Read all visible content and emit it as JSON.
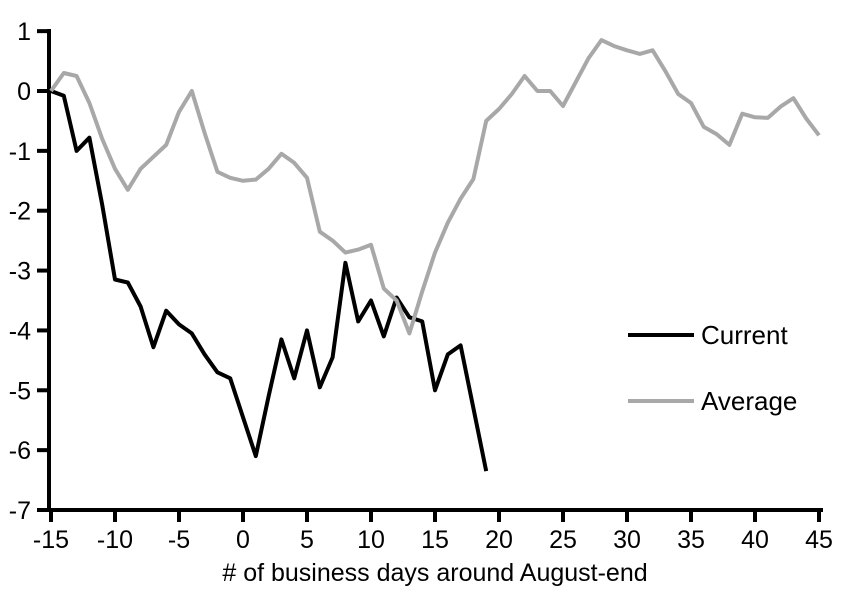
{
  "chart_data": {
    "type": "line",
    "title": "",
    "xlabel": "# of business days around August-end",
    "ylabel": "",
    "xlim": [
      -15,
      45
    ],
    "ylim": [
      -7,
      1
    ],
    "x_ticks": [
      -15,
      -10,
      -5,
      0,
      5,
      10,
      15,
      20,
      25,
      30,
      35,
      40,
      45
    ],
    "y_ticks": [
      1,
      0,
      -1,
      -2,
      -3,
      -4,
      -5,
      -6,
      -7
    ],
    "grid": false,
    "legend_position": "right-middle",
    "series": [
      {
        "name": "Current",
        "color": "#000000",
        "x_start": -15,
        "x_step": 1,
        "values": [
          0.0,
          -0.08,
          -1.0,
          -0.78,
          -1.9,
          -3.15,
          -3.2,
          -3.6,
          -4.28,
          -3.67,
          -3.9,
          -4.05,
          -4.4,
          -4.7,
          -4.8,
          -5.45,
          -6.1,
          -5.1,
          -4.15,
          -4.8,
          -4.0,
          -4.95,
          -4.45,
          -2.87,
          -3.85,
          -3.5,
          -4.1,
          -3.45,
          -3.78,
          -3.85,
          -5.0,
          -4.4,
          -4.25,
          -5.3,
          -6.35
        ]
      },
      {
        "name": "Average",
        "color": "#a8a8a8",
        "x_start": -15,
        "x_step": 1,
        "values": [
          0.0,
          0.3,
          0.25,
          -0.2,
          -0.8,
          -1.3,
          -1.65,
          -1.3,
          -1.1,
          -0.9,
          -0.35,
          0.0,
          -0.7,
          -1.35,
          -1.45,
          -1.5,
          -1.48,
          -1.3,
          -1.05,
          -1.2,
          -1.45,
          -2.35,
          -2.5,
          -2.7,
          -2.65,
          -2.57,
          -3.3,
          -3.5,
          -4.05,
          -3.35,
          -2.7,
          -2.2,
          -1.8,
          -1.47,
          -0.5,
          -0.3,
          -0.05,
          0.25,
          0.0,
          0.0,
          -0.25,
          0.15,
          0.55,
          0.85,
          0.75,
          0.68,
          0.62,
          0.68,
          0.33,
          -0.05,
          -0.2,
          -0.6,
          -0.72,
          -0.9,
          -0.38,
          -0.44,
          -0.45,
          -0.26,
          -0.12,
          -0.46,
          -0.74
        ]
      }
    ]
  },
  "legend": {
    "items": [
      {
        "label": "Current",
        "color": "#000000"
      },
      {
        "label": "Average",
        "color": "#a8a8a8"
      }
    ]
  },
  "colors": {
    "axis": "#000000",
    "background": "#ffffff",
    "current_line": "#000000",
    "average_line": "#a8a8a8"
  }
}
